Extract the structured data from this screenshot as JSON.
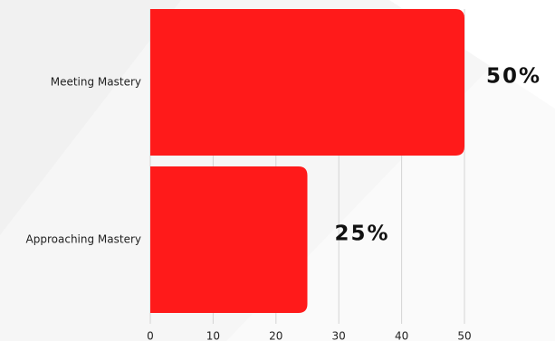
{
  "chart_data": {
    "type": "bar",
    "orientation": "horizontal",
    "categories": [
      "Meeting Mastery",
      "Approaching Mastery"
    ],
    "values": [
      50,
      25
    ],
    "data_labels": [
      "50%",
      "25%"
    ],
    "xlim": [
      0,
      50
    ],
    "x_ticks": [
      "0",
      "10",
      "20",
      "30",
      "40",
      "50"
    ],
    "title": "",
    "xlabel": "",
    "ylabel": "",
    "grid": "vertical",
    "legend": "none",
    "bar_color": "#ff1a1a"
  }
}
